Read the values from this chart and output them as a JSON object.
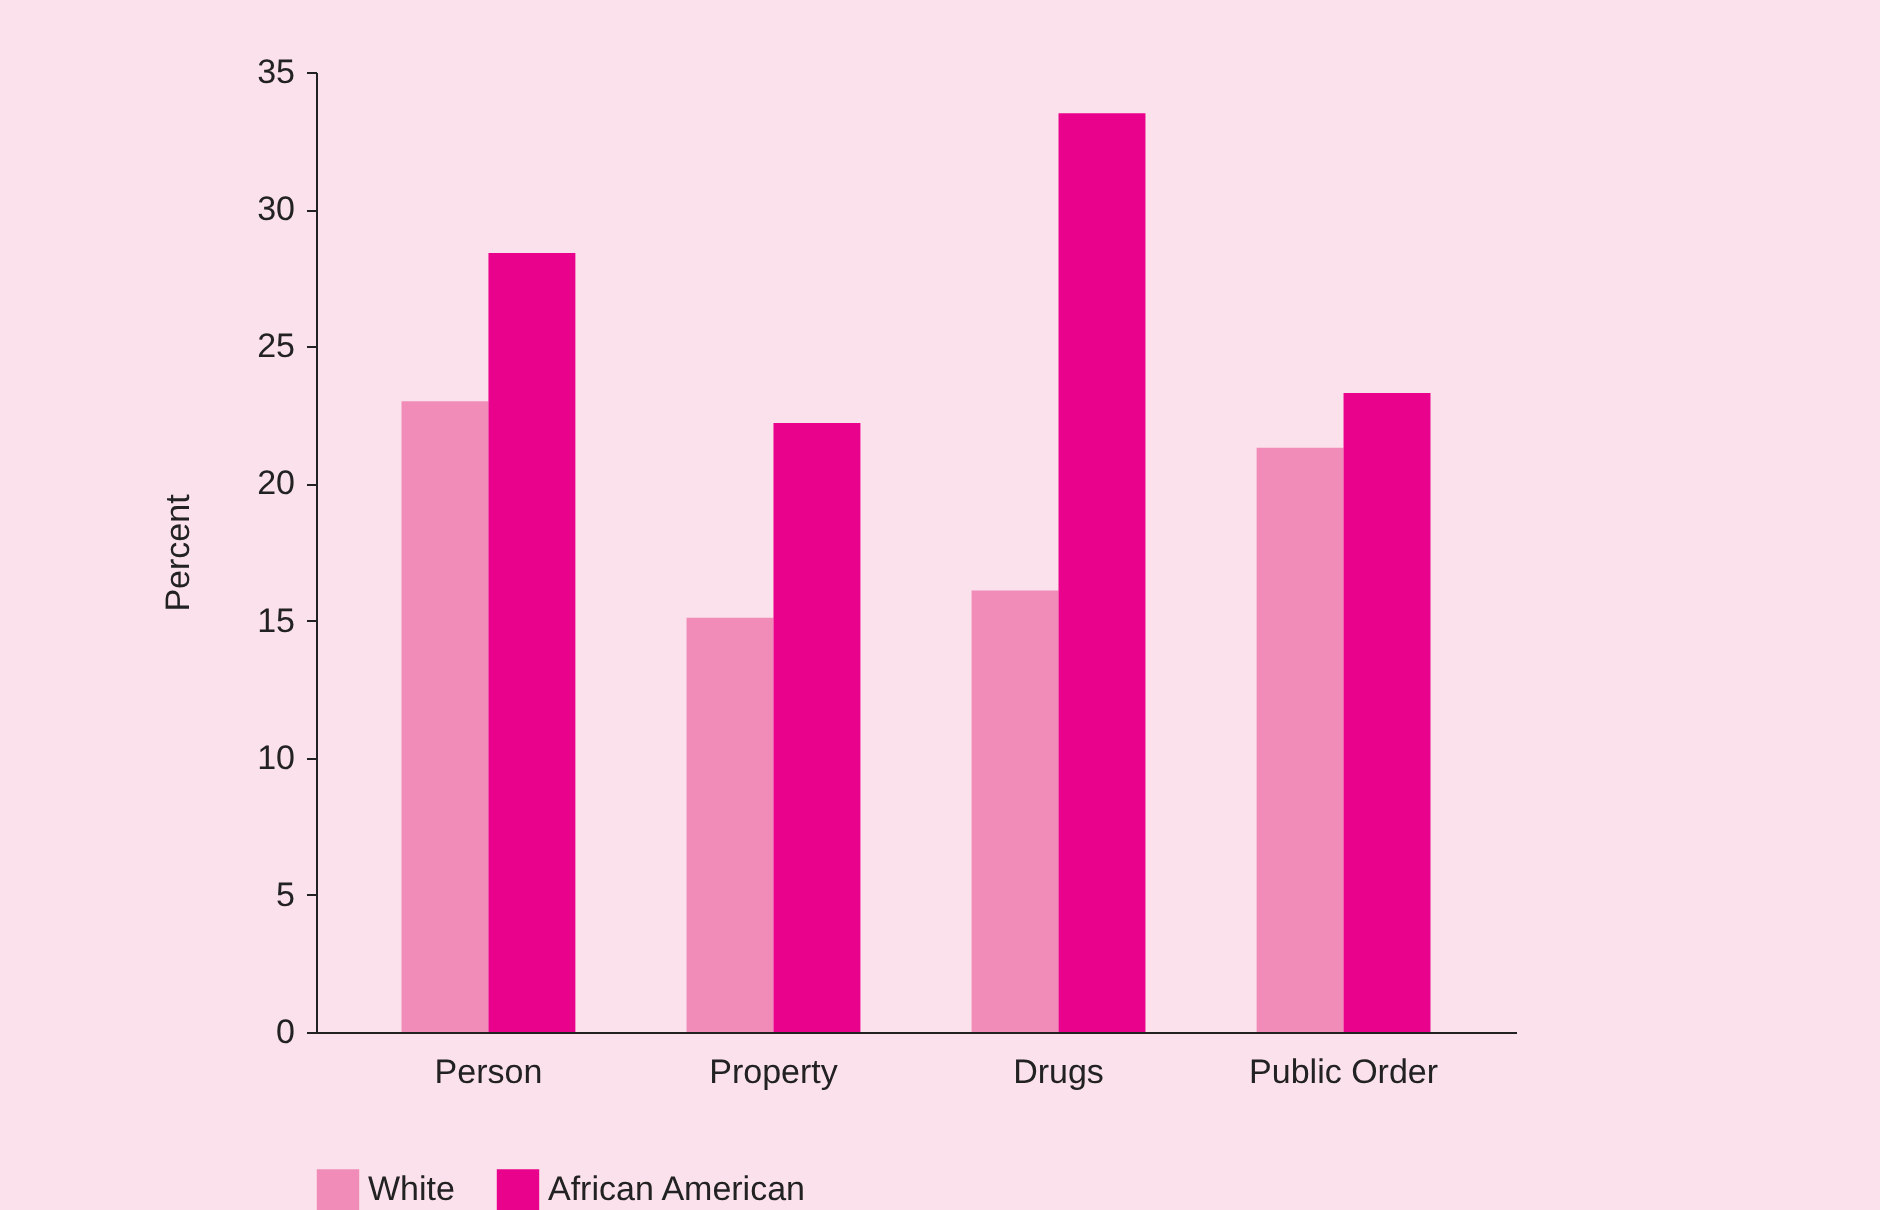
{
  "chart_data": {
    "type": "bar",
    "ylabel": "Percent",
    "categories": [
      "Person",
      "Property",
      "Drugs",
      "Public Order"
    ],
    "series": [
      {
        "name": "White",
        "color": "#f18cb9",
        "values": [
          23.0,
          15.1,
          16.1,
          21.3
        ]
      },
      {
        "name": "African American",
        "color": "#e9038c",
        "values": [
          28.4,
          22.2,
          33.5,
          23.3
        ]
      }
    ],
    "ylim": [
      0,
      35
    ],
    "yticks": [
      0,
      5,
      10,
      15,
      20,
      25,
      30,
      35
    ],
    "grid": false,
    "legend": "bottom"
  }
}
